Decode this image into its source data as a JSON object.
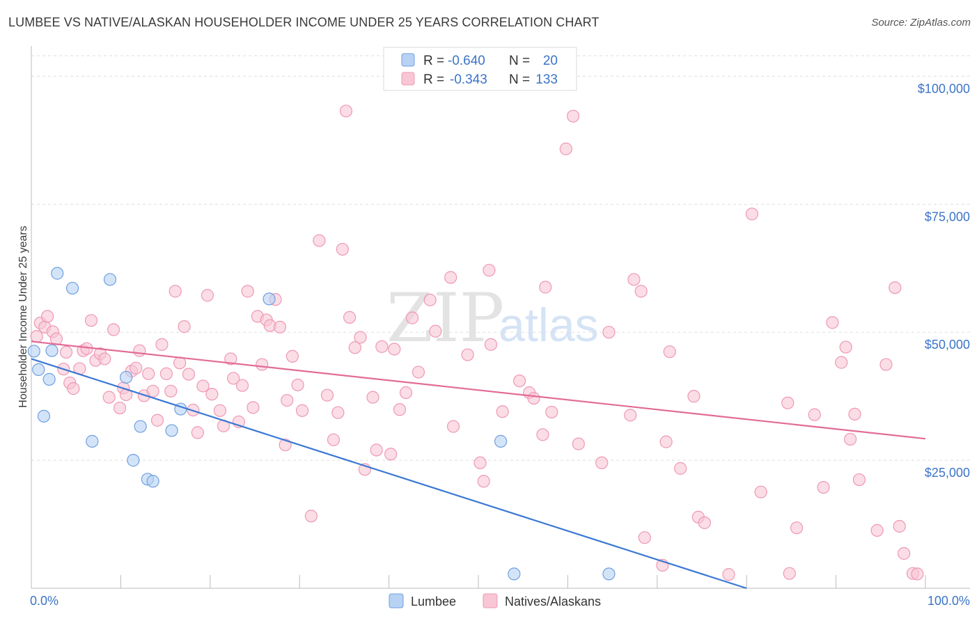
{
  "title": "LUMBEE VS NATIVE/ALASKAN HOUSEHOLDER INCOME UNDER 25 YEARS CORRELATION CHART",
  "source": "Source: ZipAtlas.com",
  "watermark": {
    "zip": "ZIP",
    "atlas": "atlas"
  },
  "colors": {
    "lumbee_fill": "#b8d2f3",
    "lumbee_stroke": "#6f9fe0",
    "lumbee_line": "#3a78d4",
    "native_fill": "#f8c6d5",
    "native_stroke": "#ee98b4",
    "native_line": "#e26b97",
    "tick_text": "#3b74c7",
    "grid": "#dddddd"
  },
  "legend": {
    "r_label": "R =",
    "n_label": "N =",
    "rows": [
      {
        "name": "Lumbee",
        "r": "-0.640",
        "n": "20"
      },
      {
        "name": "Natives/Alaskans",
        "r": "-0.343",
        "n": "133"
      }
    ]
  },
  "chart_data": {
    "type": "scatter",
    "title": "LUMBEE VS NATIVE/ALASKAN HOUSEHOLDER INCOME UNDER 25 YEARS CORRELATION CHART",
    "xlabel": "",
    "ylabel": "Householder Income Under 25 years",
    "xlim": [
      0,
      100
    ],
    "ylim": [
      0,
      104000
    ],
    "x_tick_labels": [
      "0.0%",
      "100.0%"
    ],
    "y_ticks": [
      25000,
      50000,
      75000,
      100000
    ],
    "y_tick_labels": [
      "$25,000",
      "$50,000",
      "$75,000",
      "$100,000"
    ],
    "grid": true,
    "legend_position": "top-center",
    "series": [
      {
        "name": "Lumbee",
        "r": -0.64,
        "n": 20,
        "trend": {
          "x": [
            0,
            80
          ],
          "y": [
            44800,
            0
          ]
        },
        "points": [
          [
            0.3,
            46300
          ],
          [
            0.8,
            42700
          ],
          [
            2.0,
            40800
          ],
          [
            2.3,
            46400
          ],
          [
            1.4,
            33600
          ],
          [
            2.9,
            61500
          ],
          [
            4.6,
            58600
          ],
          [
            8.8,
            60300
          ],
          [
            10.6,
            41200
          ],
          [
            6.8,
            28700
          ],
          [
            12.2,
            31600
          ],
          [
            11.4,
            25000
          ],
          [
            13.0,
            21300
          ],
          [
            13.6,
            20900
          ],
          [
            15.7,
            30800
          ],
          [
            16.7,
            35000
          ],
          [
            26.6,
            56500
          ],
          [
            52.5,
            28700
          ],
          [
            54.0,
            2800
          ],
          [
            64.6,
            2800
          ]
        ]
      },
      {
        "name": "Natives/Alaskans",
        "r": -0.343,
        "n": 133,
        "trend": {
          "x": [
            0,
            100
          ],
          "y": [
            48200,
            29200
          ]
        },
        "points": [
          [
            0.6,
            49200
          ],
          [
            1.0,
            51800
          ],
          [
            1.5,
            51000
          ],
          [
            1.8,
            53100
          ],
          [
            2.4,
            50100
          ],
          [
            2.8,
            48700
          ],
          [
            3.6,
            42800
          ],
          [
            3.9,
            46100
          ],
          [
            4.3,
            40100
          ],
          [
            4.7,
            39000
          ],
          [
            5.4,
            42900
          ],
          [
            5.8,
            46400
          ],
          [
            6.2,
            46800
          ],
          [
            6.7,
            52300
          ],
          [
            7.2,
            44500
          ],
          [
            7.7,
            45800
          ],
          [
            8.2,
            44800
          ],
          [
            8.7,
            37300
          ],
          [
            9.2,
            50500
          ],
          [
            9.9,
            35200
          ],
          [
            10.3,
            39100
          ],
          [
            10.6,
            37800
          ],
          [
            11.2,
            42400
          ],
          [
            11.7,
            43000
          ],
          [
            12.1,
            46400
          ],
          [
            12.6,
            37600
          ],
          [
            13.1,
            41900
          ],
          [
            13.6,
            38500
          ],
          [
            14.1,
            32800
          ],
          [
            14.6,
            47600
          ],
          [
            15.1,
            41900
          ],
          [
            15.6,
            38500
          ],
          [
            16.1,
            58000
          ],
          [
            16.6,
            44000
          ],
          [
            17.1,
            51100
          ],
          [
            17.6,
            41800
          ],
          [
            18.1,
            34800
          ],
          [
            18.6,
            30400
          ],
          [
            19.2,
            39500
          ],
          [
            19.7,
            57200
          ],
          [
            20.2,
            37900
          ],
          [
            21.1,
            34700
          ],
          [
            21.5,
            31700
          ],
          [
            22.3,
            44800
          ],
          [
            22.6,
            41000
          ],
          [
            23.2,
            32500
          ],
          [
            23.6,
            39600
          ],
          [
            24.2,
            58000
          ],
          [
            24.8,
            35300
          ],
          [
            25.3,
            53100
          ],
          [
            25.8,
            43700
          ],
          [
            26.3,
            52400
          ],
          [
            26.7,
            51300
          ],
          [
            27.3,
            56400
          ],
          [
            27.8,
            51000
          ],
          [
            28.4,
            28000
          ],
          [
            28.6,
            36700
          ],
          [
            29.2,
            45300
          ],
          [
            29.8,
            39700
          ],
          [
            30.3,
            34700
          ],
          [
            31.3,
            14100
          ],
          [
            32.2,
            67900
          ],
          [
            33.1,
            37700
          ],
          [
            33.8,
            29000
          ],
          [
            34.3,
            34300
          ],
          [
            34.8,
            66200
          ],
          [
            35.2,
            93200
          ],
          [
            35.6,
            52900
          ],
          [
            36.2,
            47000
          ],
          [
            36.8,
            49000
          ],
          [
            37.3,
            23200
          ],
          [
            38.2,
            37300
          ],
          [
            38.6,
            27000
          ],
          [
            39.2,
            47200
          ],
          [
            40.2,
            26200
          ],
          [
            40.6,
            46700
          ],
          [
            41.2,
            34900
          ],
          [
            41.9,
            38200
          ],
          [
            42.6,
            52800
          ],
          [
            43.3,
            42200
          ],
          [
            44.6,
            56300
          ],
          [
            45.2,
            50200
          ],
          [
            46.9,
            60700
          ],
          [
            47.2,
            31600
          ],
          [
            48.8,
            45600
          ],
          [
            50.2,
            24500
          ],
          [
            50.6,
            20900
          ],
          [
            51.2,
            62100
          ],
          [
            51.4,
            47600
          ],
          [
            52.7,
            34500
          ],
          [
            54.6,
            40500
          ],
          [
            55.7,
            38200
          ],
          [
            56.2,
            37100
          ],
          [
            57.2,
            30000
          ],
          [
            57.5,
            58800
          ],
          [
            58.2,
            34400
          ],
          [
            59.8,
            85800
          ],
          [
            60.6,
            92200
          ],
          [
            61.2,
            28200
          ],
          [
            63.8,
            24500
          ],
          [
            64.6,
            50000
          ],
          [
            67.0,
            33800
          ],
          [
            67.4,
            60300
          ],
          [
            68.2,
            58000
          ],
          [
            68.6,
            9900
          ],
          [
            70.6,
            4500
          ],
          [
            71.0,
            28600
          ],
          [
            71.4,
            46200
          ],
          [
            72.6,
            23400
          ],
          [
            74.1,
            37500
          ],
          [
            74.6,
            13900
          ],
          [
            75.3,
            12800
          ],
          [
            78.0,
            2700
          ],
          [
            80.6,
            73100
          ],
          [
            81.6,
            18800
          ],
          [
            84.6,
            36200
          ],
          [
            84.8,
            2900
          ],
          [
            85.6,
            11800
          ],
          [
            87.6,
            33900
          ],
          [
            88.6,
            19700
          ],
          [
            89.6,
            51900
          ],
          [
            90.6,
            44100
          ],
          [
            91.1,
            47100
          ],
          [
            91.6,
            29100
          ],
          [
            92.1,
            34000
          ],
          [
            92.6,
            21200
          ],
          [
            94.6,
            11300
          ],
          [
            95.6,
            43700
          ],
          [
            96.6,
            58700
          ],
          [
            97.1,
            12100
          ],
          [
            97.6,
            6800
          ],
          [
            98.6,
            2900
          ],
          [
            99.1,
            2800
          ]
        ]
      }
    ]
  }
}
